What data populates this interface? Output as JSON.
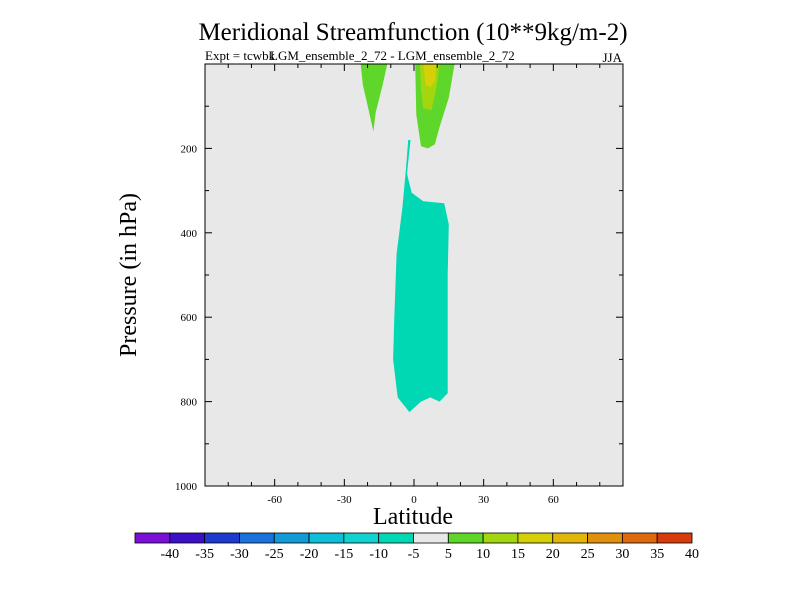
{
  "chart_data": {
    "type": "contour",
    "title": "Meridional Streamfunction (10**9kg/m-2)",
    "subtitle_left_a": "Expt = tcwbk",
    "subtitle_left_b": "LGM_ensemble_2_72 - LGM_ensemble_2_72",
    "subtitle_right": "JJA",
    "xlabel": "Latitude",
    "ylabel": "Pressure (in hPa)",
    "xlim": [
      -90,
      90
    ],
    "ylim": [
      1000,
      0
    ],
    "x_ticks": [
      -60,
      -30,
      0,
      30,
      60
    ],
    "y_ticks": [
      200,
      400,
      600,
      800,
      1000
    ],
    "colorbar": {
      "levels": [
        -40,
        -35,
        -30,
        -25,
        -20,
        -15,
        -10,
        -5,
        5,
        10,
        15,
        20,
        25,
        30,
        35,
        40
      ],
      "colors": [
        "#7b0fd8",
        "#3b10c8",
        "#1e3bd0",
        "#1a72dc",
        "#149ad6",
        "#0fbfd8",
        "#12d2cf",
        "#00d8b4",
        "#e8e8e8",
        "#5fd62a",
        "#a4d610",
        "#d6d008",
        "#e2b50a",
        "#e0900e",
        "#dc6a0e",
        "#d83c0c"
      ]
    },
    "regions": [
      {
        "name": "negative-cell-5to-10",
        "color": "#00d8b4",
        "points": [
          [
            -1.5,
            180
          ],
          [
            -3,
            260
          ],
          [
            -1,
            305
          ],
          [
            4,
            325
          ],
          [
            13,
            330
          ],
          [
            15,
            380
          ],
          [
            14.5,
            500
          ],
          [
            14.5,
            780
          ],
          [
            11,
            800
          ],
          [
            7,
            790
          ],
          [
            3,
            800
          ],
          [
            -2,
            825
          ],
          [
            -7,
            790
          ],
          [
            -9,
            700
          ],
          [
            -8.5,
            600
          ],
          [
            -7.5,
            450
          ],
          [
            -5,
            340
          ],
          [
            -3.5,
            250
          ],
          [
            -2.5,
            180
          ]
        ]
      },
      {
        "name": "upper-positive-cell-east",
        "color": "#5fd62a",
        "points": [
          [
            0.5,
            0
          ],
          [
            17.5,
            0
          ],
          [
            15,
            80
          ],
          [
            11,
            150
          ],
          [
            9,
            190
          ],
          [
            6,
            200
          ],
          [
            3,
            195
          ],
          [
            1,
            120
          ]
        ]
      },
      {
        "name": "upper-positive-cell-east-inner",
        "color": "#a4d610",
        "points": [
          [
            2.5,
            0
          ],
          [
            11,
            0
          ],
          [
            9.5,
            60
          ],
          [
            7.5,
            110
          ],
          [
            4,
            105
          ],
          [
            3,
            60
          ]
        ]
      },
      {
        "name": "upper-positive-cell-east-core",
        "color": "#d6d008",
        "points": [
          [
            4,
            0
          ],
          [
            9.5,
            0
          ],
          [
            9,
            40
          ],
          [
            7,
            55
          ],
          [
            5,
            50
          ]
        ]
      },
      {
        "name": "upper-positive-cell-west",
        "color": "#5fd62a",
        "points": [
          [
            -23,
            0
          ],
          [
            -11.5,
            0
          ],
          [
            -13.5,
            50
          ],
          [
            -16.5,
            115
          ],
          [
            -17.5,
            160
          ],
          [
            -19.5,
            110
          ],
          [
            -22,
            50
          ]
        ]
      }
    ]
  }
}
